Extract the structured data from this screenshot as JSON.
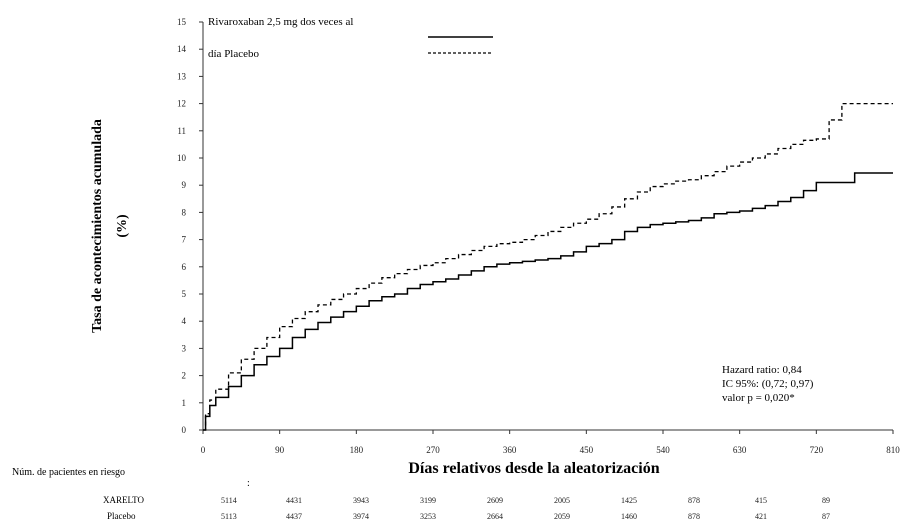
{
  "chart_data": {
    "type": "line",
    "title": "",
    "ylabel_line1": "Tasa de acontecimientos acumulada",
    "ylabel_line2": "(%)",
    "xlabel": "Días relativos desde la aleatorización",
    "xlim": [
      0,
      810
    ],
    "ylim": [
      0,
      15
    ],
    "xticks": [
      0,
      90,
      180,
      270,
      360,
      450,
      540,
      630,
      720,
      810
    ],
    "yticks": [
      0,
      1,
      2,
      3,
      4,
      5,
      6,
      7,
      8,
      9,
      10,
      11,
      12,
      13,
      14,
      15
    ],
    "grid": false,
    "legend": {
      "line1": "Rivaroxaban 2,5 mg dos veces al",
      "line2": "día Placebo"
    },
    "series": [
      {
        "name": "Rivaroxaban 2,5 mg dos veces al día",
        "style": "solid",
        "x": [
          0,
          3,
          8,
          15,
          30,
          45,
          60,
          75,
          90,
          105,
          120,
          135,
          150,
          165,
          180,
          195,
          210,
          225,
          240,
          255,
          270,
          285,
          300,
          315,
          330,
          345,
          360,
          375,
          390,
          405,
          420,
          435,
          450,
          465,
          480,
          495,
          510,
          525,
          540,
          555,
          570,
          585,
          600,
          615,
          630,
          645,
          660,
          675,
          690,
          705,
          720,
          735,
          750,
          765,
          780,
          795,
          810
        ],
        "y": [
          0,
          0.5,
          0.9,
          1.2,
          1.6,
          2.0,
          2.4,
          2.7,
          3.0,
          3.4,
          3.7,
          3.95,
          4.15,
          4.35,
          4.55,
          4.75,
          4.9,
          5.0,
          5.2,
          5.35,
          5.45,
          5.55,
          5.7,
          5.85,
          6.0,
          6.1,
          6.15,
          6.2,
          6.25,
          6.3,
          6.4,
          6.55,
          6.75,
          6.85,
          7.0,
          7.3,
          7.45,
          7.55,
          7.6,
          7.65,
          7.7,
          7.8,
          7.95,
          8.0,
          8.05,
          8.15,
          8.25,
          8.4,
          8.55,
          8.8,
          9.1,
          9.1,
          9.1,
          9.45,
          9.45,
          9.45,
          9.45
        ]
      },
      {
        "name": "Placebo",
        "style": "dashed",
        "x": [
          0,
          3,
          8,
          15,
          30,
          45,
          60,
          75,
          90,
          105,
          120,
          135,
          150,
          165,
          180,
          195,
          210,
          225,
          240,
          255,
          270,
          285,
          300,
          315,
          330,
          345,
          360,
          375,
          390,
          405,
          420,
          435,
          450,
          465,
          480,
          495,
          510,
          525,
          540,
          555,
          570,
          585,
          600,
          615,
          630,
          645,
          660,
          675,
          690,
          705,
          720,
          735,
          750,
          765,
          780,
          795,
          810
        ],
        "y": [
          0,
          0.6,
          1.1,
          1.5,
          2.1,
          2.6,
          3.0,
          3.4,
          3.8,
          4.1,
          4.35,
          4.6,
          4.8,
          5.0,
          5.2,
          5.4,
          5.6,
          5.75,
          5.9,
          6.05,
          6.15,
          6.3,
          6.45,
          6.6,
          6.75,
          6.85,
          6.9,
          7.0,
          7.15,
          7.3,
          7.45,
          7.6,
          7.75,
          7.95,
          8.2,
          8.5,
          8.75,
          8.95,
          9.05,
          9.15,
          9.2,
          9.35,
          9.5,
          9.7,
          9.85,
          10.0,
          10.15,
          10.35,
          10.5,
          10.65,
          10.7,
          11.4,
          12.0,
          12.0,
          12.0,
          12.0,
          12.0
        ]
      }
    ],
    "annotations": [
      "Hazard ratio: 0,84",
      "IC 95%: (0,72; 0,97)",
      "valor p = 0,020*"
    ],
    "risk_table": {
      "title": "Núm. de pacientes en riesgo",
      "colon": ":",
      "rows": [
        {
          "label": "XARELTO",
          "values": [
            "5114",
            "4431",
            "3943",
            "3199",
            "2609",
            "2005",
            "1425",
            "878",
            "415",
            "89"
          ]
        },
        {
          "label": "Placebo",
          "values": [
            "5113",
            "4437",
            "3974",
            "3253",
            "2664",
            "2059",
            "1460",
            "878",
            "421",
            "87"
          ]
        }
      ]
    },
    "colors": {
      "line": "#000000",
      "axis": "#333333"
    }
  }
}
